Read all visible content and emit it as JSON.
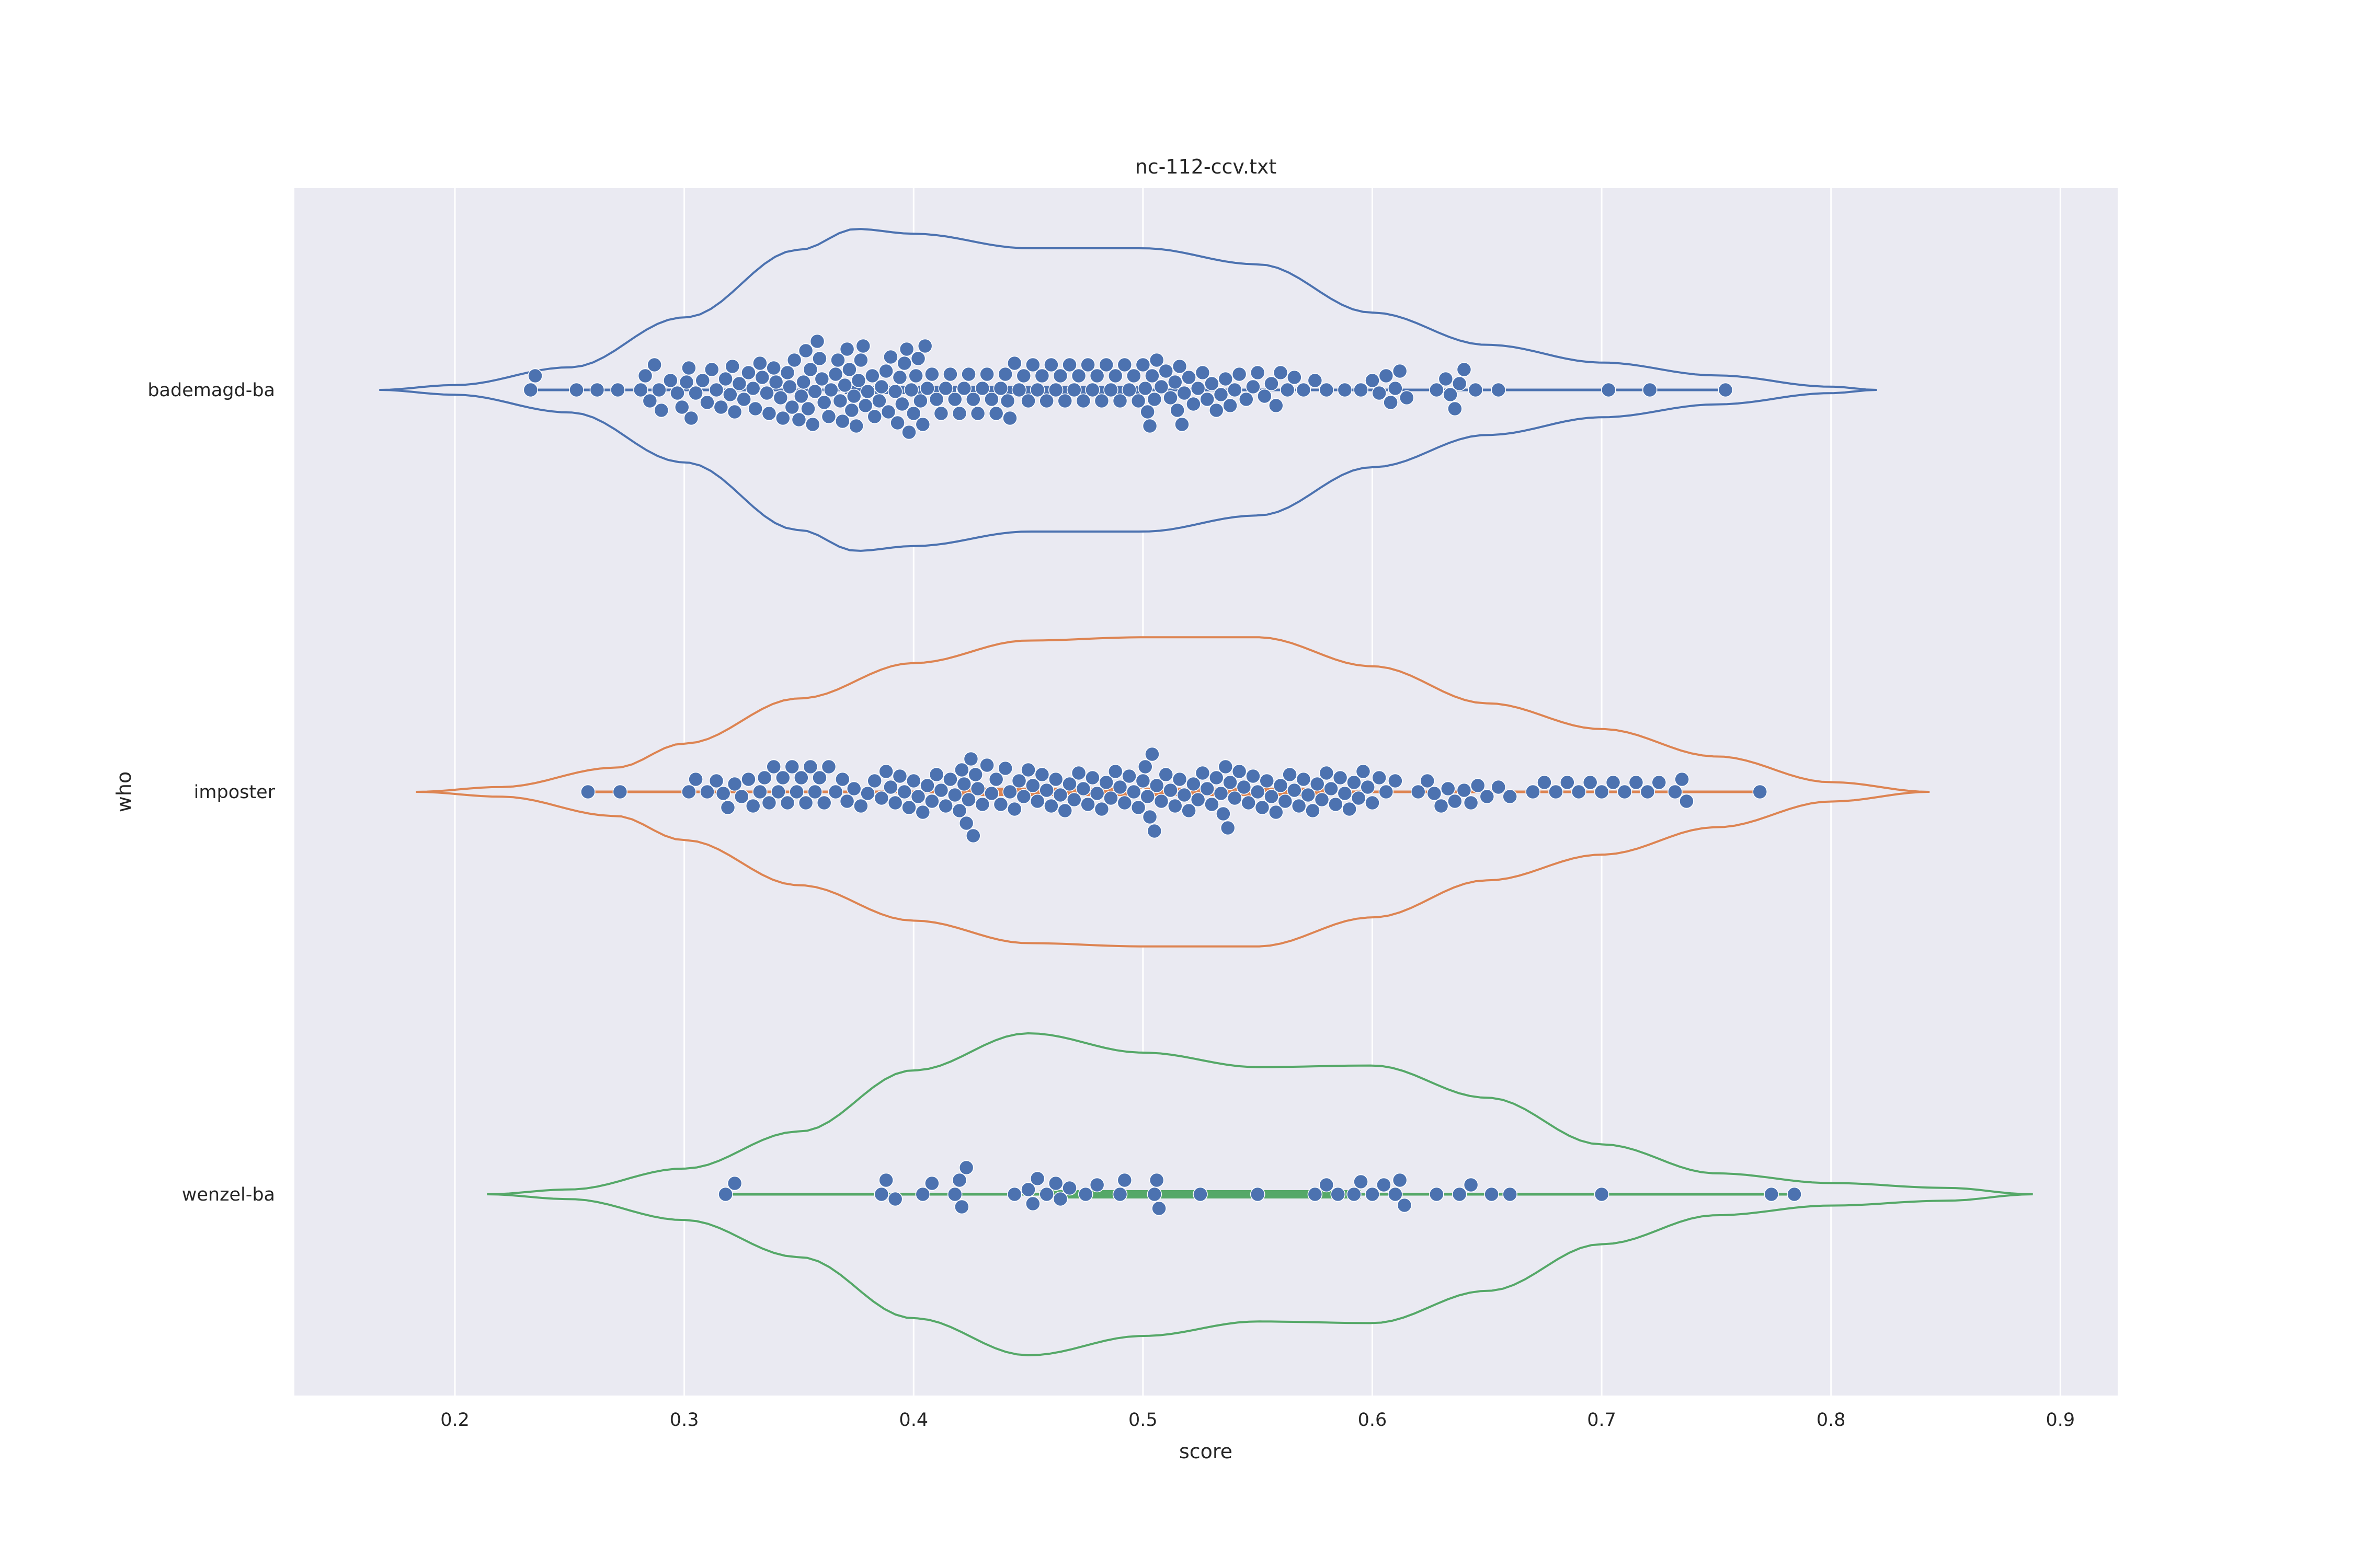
{
  "chart_data": {
    "type": "violin",
    "title": "nc-112-ccv.txt",
    "xlabel": "score",
    "ylabel": "who",
    "xlim": [
      0.13,
      0.925
    ],
    "xticks": [
      0.2,
      0.3,
      0.4,
      0.5,
      0.6,
      0.7,
      0.8,
      0.9
    ],
    "grid": "vertical",
    "background_color": "#eaeaf2",
    "point_color": "#4c72b0",
    "categories": [
      "bademagd-ba",
      "imposter",
      "wenzel-ba"
    ],
    "series": [
      {
        "name": "bademagd-ba",
        "color": "#4c72b0",
        "range": [
          0.233,
          0.754
        ],
        "quartiles": [
          0.37,
          0.42,
          0.5
        ],
        "kde_min": 0.167,
        "kde_max": 0.82,
        "density": [
          [
            0.167,
            0
          ],
          [
            0.2,
            0.03
          ],
          [
            0.25,
            0.14
          ],
          [
            0.3,
            0.45
          ],
          [
            0.35,
            0.87
          ],
          [
            0.375,
            1.0
          ],
          [
            0.4,
            0.97
          ],
          [
            0.45,
            0.88
          ],
          [
            0.5,
            0.88
          ],
          [
            0.55,
            0.78
          ],
          [
            0.6,
            0.48
          ],
          [
            0.65,
            0.28
          ],
          [
            0.7,
            0.17
          ],
          [
            0.75,
            0.09
          ],
          [
            0.8,
            0.02
          ],
          [
            0.82,
            0
          ]
        ],
        "values": [
          0.233,
          0.235,
          0.253,
          0.262,
          0.271,
          0.281,
          0.283,
          0.285,
          0.287,
          0.289,
          0.29,
          0.294,
          0.297,
          0.299,
          0.301,
          0.302,
          0.303,
          0.305,
          0.308,
          0.31,
          0.312,
          0.314,
          0.316,
          0.318,
          0.32,
          0.321,
          0.322,
          0.324,
          0.326,
          0.328,
          0.33,
          0.331,
          0.333,
          0.334,
          0.336,
          0.337,
          0.339,
          0.34,
          0.342,
          0.343,
          0.345,
          0.346,
          0.347,
          0.348,
          0.35,
          0.351,
          0.352,
          0.353,
          0.354,
          0.355,
          0.356,
          0.357,
          0.358,
          0.359,
          0.36,
          0.361,
          0.363,
          0.364,
          0.366,
          0.367,
          0.368,
          0.369,
          0.37,
          0.371,
          0.372,
          0.373,
          0.374,
          0.375,
          0.376,
          0.377,
          0.378,
          0.379,
          0.38,
          0.382,
          0.383,
          0.385,
          0.386,
          0.388,
          0.389,
          0.39,
          0.392,
          0.393,
          0.394,
          0.395,
          0.396,
          0.397,
          0.398,
          0.399,
          0.4,
          0.401,
          0.402,
          0.403,
          0.404,
          0.405,
          0.406,
          0.408,
          0.41,
          0.412,
          0.414,
          0.416,
          0.418,
          0.42,
          0.422,
          0.424,
          0.426,
          0.428,
          0.43,
          0.432,
          0.434,
          0.436,
          0.438,
          0.44,
          0.441,
          0.442,
          0.444,
          0.446,
          0.448,
          0.45,
          0.452,
          0.454,
          0.456,
          0.458,
          0.46,
          0.462,
          0.464,
          0.466,
          0.468,
          0.47,
          0.472,
          0.474,
          0.476,
          0.478,
          0.48,
          0.482,
          0.484,
          0.486,
          0.488,
          0.49,
          0.492,
          0.494,
          0.496,
          0.498,
          0.5,
          0.501,
          0.502,
          0.503,
          0.504,
          0.505,
          0.506,
          0.508,
          0.51,
          0.512,
          0.514,
          0.515,
          0.516,
          0.517,
          0.518,
          0.52,
          0.522,
          0.524,
          0.526,
          0.528,
          0.53,
          0.532,
          0.534,
          0.536,
          0.538,
          0.54,
          0.542,
          0.545,
          0.548,
          0.55,
          0.553,
          0.556,
          0.558,
          0.56,
          0.563,
          0.566,
          0.57,
          0.575,
          0.58,
          0.588,
          0.595,
          0.6,
          0.603,
          0.606,
          0.608,
          0.61,
          0.612,
          0.615,
          0.628,
          0.632,
          0.634,
          0.636,
          0.638,
          0.64,
          0.645,
          0.655,
          0.703,
          0.721,
          0.754
        ]
      },
      {
        "name": "imposter",
        "color": "#dd8452",
        "range": [
          0.258,
          0.769
        ],
        "quartiles": [
          0.42,
          0.5,
          0.58
        ],
        "kde_min": 0.183,
        "kde_max": 0.843,
        "density": [
          [
            0.183,
            0
          ],
          [
            0.22,
            0.03
          ],
          [
            0.27,
            0.15
          ],
          [
            0.3,
            0.3
          ],
          [
            0.35,
            0.58
          ],
          [
            0.4,
            0.8
          ],
          [
            0.45,
            0.94
          ],
          [
            0.5,
            0.96
          ],
          [
            0.55,
            0.96
          ],
          [
            0.6,
            0.78
          ],
          [
            0.65,
            0.55
          ],
          [
            0.7,
            0.39
          ],
          [
            0.75,
            0.22
          ],
          [
            0.8,
            0.06
          ],
          [
            0.843,
            0
          ]
        ],
        "values": [
          0.258,
          0.272,
          0.302,
          0.305,
          0.31,
          0.314,
          0.317,
          0.319,
          0.322,
          0.325,
          0.328,
          0.33,
          0.333,
          0.335,
          0.337,
          0.339,
          0.341,
          0.343,
          0.345,
          0.347,
          0.349,
          0.351,
          0.353,
          0.355,
          0.357,
          0.359,
          0.361,
          0.363,
          0.366,
          0.369,
          0.371,
          0.374,
          0.377,
          0.38,
          0.383,
          0.386,
          0.388,
          0.39,
          0.392,
          0.394,
          0.396,
          0.398,
          0.4,
          0.402,
          0.404,
          0.406,
          0.408,
          0.41,
          0.412,
          0.414,
          0.416,
          0.418,
          0.42,
          0.421,
          0.422,
          0.423,
          0.424,
          0.425,
          0.426,
          0.427,
          0.428,
          0.43,
          0.432,
          0.434,
          0.436,
          0.438,
          0.44,
          0.442,
          0.444,
          0.446,
          0.448,
          0.45,
          0.452,
          0.454,
          0.456,
          0.458,
          0.46,
          0.462,
          0.464,
          0.466,
          0.468,
          0.47,
          0.472,
          0.474,
          0.476,
          0.478,
          0.48,
          0.482,
          0.484,
          0.486,
          0.488,
          0.49,
          0.492,
          0.494,
          0.496,
          0.498,
          0.5,
          0.501,
          0.502,
          0.503,
          0.504,
          0.505,
          0.506,
          0.508,
          0.51,
          0.512,
          0.514,
          0.516,
          0.518,
          0.52,
          0.522,
          0.524,
          0.526,
          0.528,
          0.53,
          0.532,
          0.534,
          0.535,
          0.536,
          0.537,
          0.538,
          0.54,
          0.542,
          0.544,
          0.546,
          0.548,
          0.55,
          0.552,
          0.554,
          0.556,
          0.558,
          0.56,
          0.562,
          0.564,
          0.566,
          0.568,
          0.57,
          0.572,
          0.574,
          0.576,
          0.578,
          0.58,
          0.582,
          0.584,
          0.586,
          0.588,
          0.59,
          0.592,
          0.594,
          0.596,
          0.598,
          0.6,
          0.603,
          0.606,
          0.61,
          0.62,
          0.624,
          0.627,
          0.63,
          0.633,
          0.636,
          0.64,
          0.643,
          0.646,
          0.65,
          0.655,
          0.66,
          0.67,
          0.675,
          0.68,
          0.685,
          0.69,
          0.695,
          0.7,
          0.705,
          0.71,
          0.715,
          0.72,
          0.725,
          0.732,
          0.735,
          0.737,
          0.769
        ]
      },
      {
        "name": "wenzel-ba",
        "color": "#55a868",
        "range": [
          0.318,
          0.784
        ],
        "quartiles": [
          0.455,
          0.55,
          0.595
        ],
        "kde_min": 0.214,
        "kde_max": 0.888,
        "density": [
          [
            0.214,
            0
          ],
          [
            0.25,
            0.03
          ],
          [
            0.3,
            0.16
          ],
          [
            0.35,
            0.39
          ],
          [
            0.4,
            0.77
          ],
          [
            0.45,
            1.0
          ],
          [
            0.5,
            0.88
          ],
          [
            0.55,
            0.79
          ],
          [
            0.6,
            0.8
          ],
          [
            0.65,
            0.6
          ],
          [
            0.7,
            0.31
          ],
          [
            0.75,
            0.13
          ],
          [
            0.8,
            0.07
          ],
          [
            0.85,
            0.04
          ],
          [
            0.888,
            0
          ]
        ],
        "values": [
          0.318,
          0.322,
          0.386,
          0.388,
          0.392,
          0.404,
          0.408,
          0.418,
          0.42,
          0.421,
          0.423,
          0.444,
          0.45,
          0.452,
          0.454,
          0.458,
          0.462,
          0.464,
          0.468,
          0.475,
          0.48,
          0.49,
          0.492,
          0.505,
          0.506,
          0.507,
          0.525,
          0.55,
          0.575,
          0.58,
          0.585,
          0.592,
          0.595,
          0.6,
          0.605,
          0.61,
          0.612,
          0.614,
          0.628,
          0.638,
          0.643,
          0.652,
          0.66,
          0.7,
          0.774,
          0.784
        ]
      }
    ]
  }
}
